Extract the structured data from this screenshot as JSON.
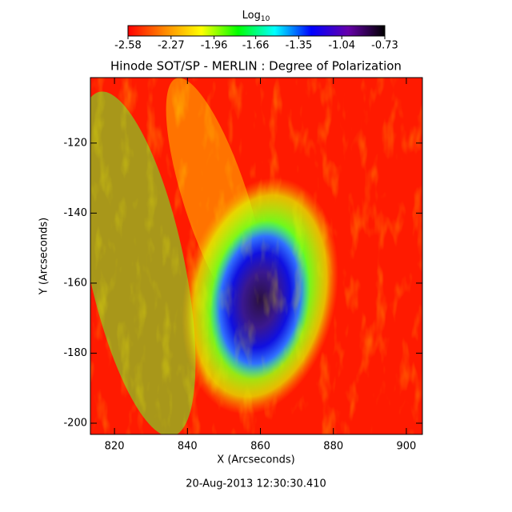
{
  "chart_data": {
    "type": "image",
    "title": "Hinode SOT/SP - MERLIN : Degree of Polarization",
    "xlabel": "X (Arcseconds)",
    "ylabel": "Y (Arcseconds)",
    "xlim": [
      813.4,
      904.4
    ],
    "ylim": [
      -203.2,
      -101.3
    ],
    "xticks": [
      820,
      840,
      860,
      880,
      900
    ],
    "yticks": [
      -120,
      -140,
      -160,
      -180,
      -200
    ],
    "colorbar": {
      "label": "Log",
      "label_subscript": "10",
      "lim": [
        -2.58,
        -0.73
      ],
      "ticks": [
        -2.58,
        -2.27,
        -1.96,
        -1.66,
        -1.35,
        -1.04,
        -0.73
      ],
      "colors": [
        "#ff0000",
        "#ff8800",
        "#ffff00",
        "#00ff00",
        "#00ffff",
        "#0000ff",
        "#6600aa",
        "#000000"
      ]
    },
    "footer": "20-Aug-2013 12:30:30.410"
  }
}
